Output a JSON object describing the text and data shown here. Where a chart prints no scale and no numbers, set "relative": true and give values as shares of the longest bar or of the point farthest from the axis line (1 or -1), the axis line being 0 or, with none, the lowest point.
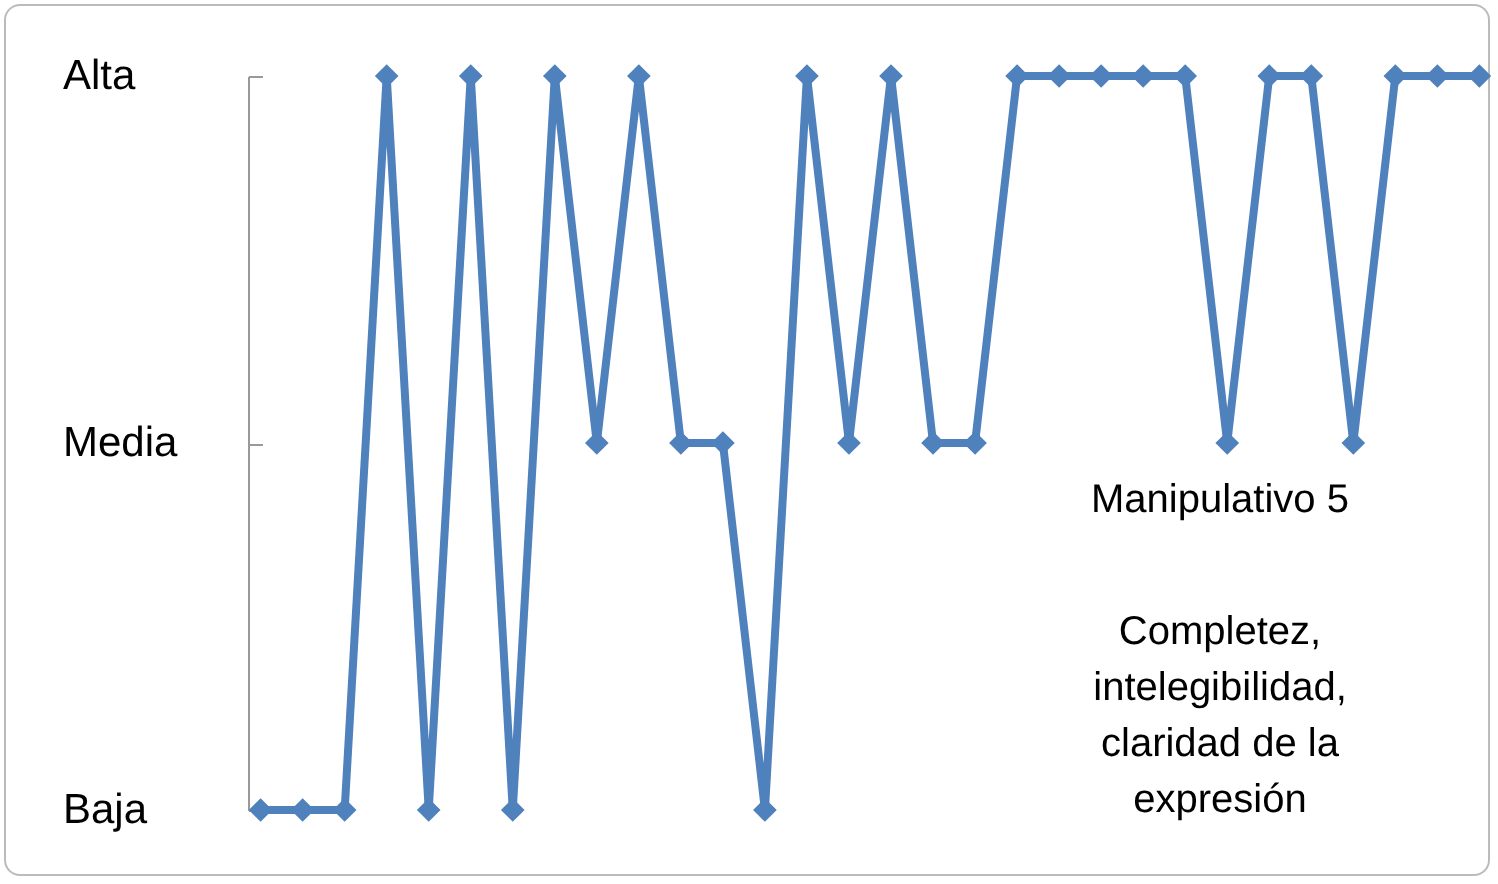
{
  "chart_data": {
    "type": "line",
    "relative": true,
    "categories": [
      null,
      null,
      null,
      null,
      null,
      null,
      null,
      null,
      null,
      null,
      null,
      null,
      null,
      null,
      null,
      null,
      null,
      null,
      null,
      null,
      null,
      null,
      null,
      null,
      null,
      null,
      null,
      null,
      null,
      null
    ],
    "y_categories": [
      "Alta",
      "Media",
      "Baja"
    ],
    "series": [
      {
        "color": "#4f81bd",
        "values": [
          0,
          0,
          0,
          1,
          0,
          1,
          0,
          1,
          0.5,
          1,
          0.5,
          0.5,
          0,
          1,
          0.5,
          1,
          0.5,
          0.5,
          1,
          1,
          1,
          1,
          1,
          0.5,
          1,
          1,
          0.5,
          1,
          1,
          1
        ]
      }
    ],
    "tick_labels": "y",
    "grid": false,
    "marker": "diamond",
    "line_style": "solid",
    "annotations": [
      "Manipulativo 5",
      "Completez, intelegibilidad, claridad de la expresión"
    ]
  }
}
